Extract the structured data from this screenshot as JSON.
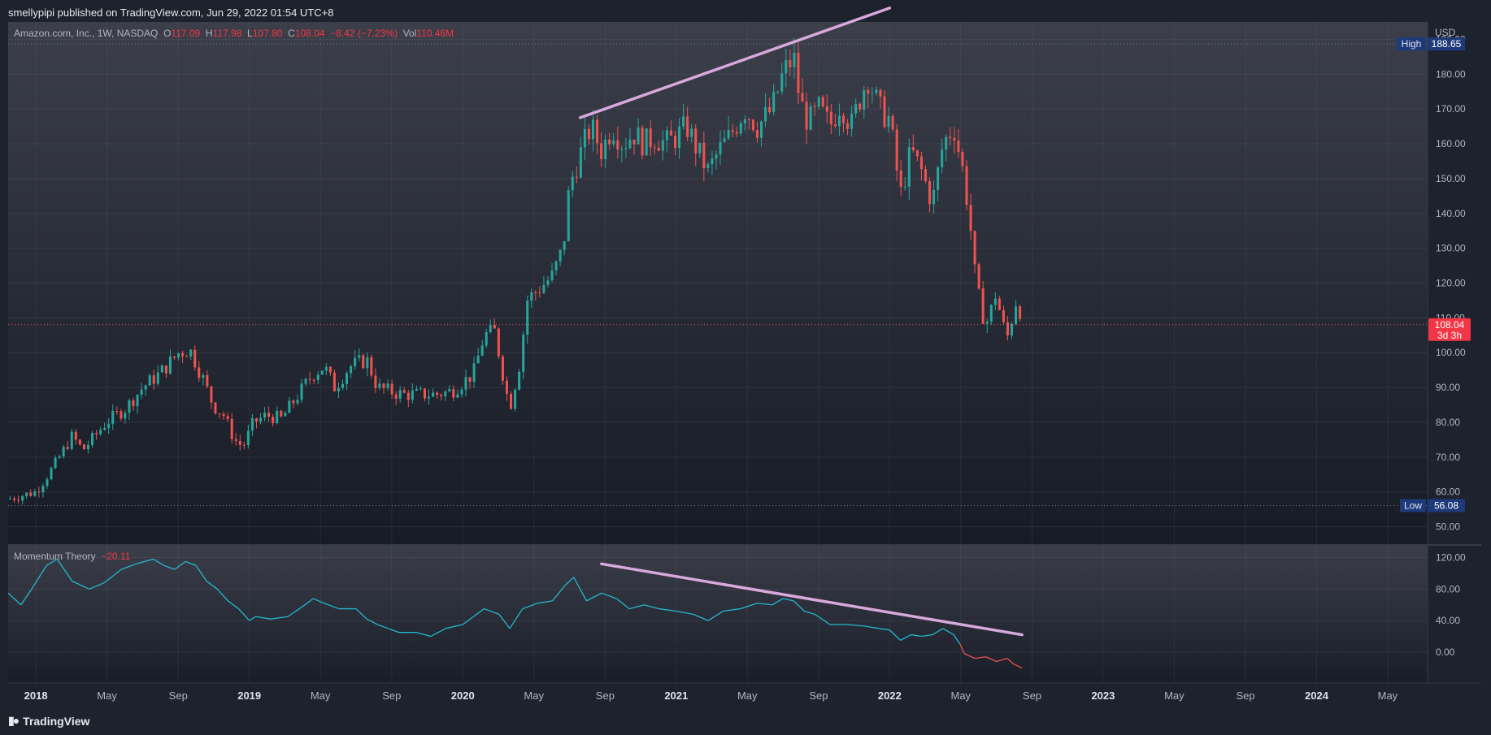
{
  "header": {
    "published": "smellypipi published on TradingView.com, Jun 29, 2022 01:54 UTC+8"
  },
  "legend": {
    "symbol": "Amazon.com, Inc., 1W, NASDAQ",
    "o_label": "O",
    "o_value": "117.09",
    "h_label": "H",
    "h_value": "117.98",
    "l_label": "L",
    "l_value": "107.80",
    "c_label": "C",
    "c_value": "108.04",
    "change": "−8.42 (−7.23%)",
    "vol_label": "Vol",
    "vol_value": "110.46M"
  },
  "currency": "USD",
  "indicator": {
    "name": "Momentum Theory",
    "value": "−20.11"
  },
  "markers": {
    "high_label": "High",
    "high_value": "188.65",
    "low_label": "Low",
    "low_value": "56.08",
    "last_price": "108.04",
    "last_countdown": "3d 3h"
  },
  "footer": {
    "brand": "TradingView"
  },
  "colors": {
    "up": "#26a69a",
    "down": "#ef5350",
    "momentum": "#22b8cf",
    "trendline": "#d8a9dc",
    "marker_bg": "#1e3a7a",
    "last_bg": "#f23645"
  },
  "chart_data": [
    {
      "type": "candlestick",
      "title": "Amazon.com, Inc., 1W, NASDAQ",
      "price_axis": {
        "ticks": [
          "50.00",
          "60.00",
          "70.00",
          "80.00",
          "90.00",
          "100.00",
          "110.00",
          "120.00",
          "130.00",
          "140.00",
          "150.00",
          "160.00",
          "170.00",
          "180.00",
          "190.00"
        ],
        "ylim": [
          45,
          195
        ]
      },
      "time_axis": {
        "ticks": [
          {
            "label": "2018",
            "t": 2018.0,
            "bold": true
          },
          {
            "label": "May",
            "t": 2018.333
          },
          {
            "label": "Sep",
            "t": 2018.667
          },
          {
            "label": "2019",
            "t": 2019.0,
            "bold": true
          },
          {
            "label": "May",
            "t": 2019.333
          },
          {
            "label": "Sep",
            "t": 2019.667
          },
          {
            "label": "2020",
            "t": 2020.0,
            "bold": true
          },
          {
            "label": "May",
            "t": 2020.333
          },
          {
            "label": "Sep",
            "t": 2020.667
          },
          {
            "label": "2021",
            "t": 2021.0,
            "bold": true
          },
          {
            "label": "May",
            "t": 2021.333
          },
          {
            "label": "Sep",
            "t": 2021.667
          },
          {
            "label": "2022",
            "t": 2022.0,
            "bold": true
          },
          {
            "label": "May",
            "t": 2022.333
          },
          {
            "label": "Sep",
            "t": 2022.667
          },
          {
            "label": "2023",
            "t": 2023.0,
            "bold": true
          },
          {
            "label": "May",
            "t": 2023.333
          },
          {
            "label": "Sep",
            "t": 2023.667
          },
          {
            "label": "2024",
            "t": 2024.0,
            "bold": true
          },
          {
            "label": "May",
            "t": 2024.333
          }
        ],
        "xlim": [
          2017.87,
          2024.52
        ]
      },
      "price_path": [
        [
          2017.87,
          58
        ],
        [
          2018.0,
          60
        ],
        [
          2018.08,
          67
        ],
        [
          2018.17,
          76
        ],
        [
          2018.22,
          72
        ],
        [
          2018.33,
          80
        ],
        [
          2018.42,
          84
        ],
        [
          2018.5,
          90
        ],
        [
          2018.58,
          94
        ],
        [
          2018.67,
          100
        ],
        [
          2018.72,
          101
        ],
        [
          2018.78,
          93
        ],
        [
          2018.83,
          85
        ],
        [
          2018.88,
          82
        ],
        [
          2018.93,
          75
        ],
        [
          2018.97,
          73
        ],
        [
          2019.02,
          80
        ],
        [
          2019.08,
          82
        ],
        [
          2019.15,
          81
        ],
        [
          2019.23,
          88
        ],
        [
          2019.3,
          94
        ],
        [
          2019.35,
          96
        ],
        [
          2019.4,
          90
        ],
        [
          2019.47,
          96
        ],
        [
          2019.55,
          98
        ],
        [
          2019.6,
          90
        ],
        [
          2019.65,
          89
        ],
        [
          2019.72,
          88
        ],
        [
          2019.8,
          88
        ],
        [
          2019.88,
          88
        ],
        [
          2019.95,
          89
        ],
        [
          2020.05,
          94
        ],
        [
          2020.1,
          105
        ],
        [
          2020.15,
          106
        ],
        [
          2020.2,
          90
        ],
        [
          2020.22,
          84
        ],
        [
          2020.27,
          98
        ],
        [
          2020.3,
          115
        ],
        [
          2020.35,
          118
        ],
        [
          2020.42,
          122
        ],
        [
          2020.47,
          130
        ],
        [
          2020.5,
          148
        ],
        [
          2020.55,
          157
        ],
        [
          2020.6,
          165
        ],
        [
          2020.65,
          158
        ],
        [
          2020.7,
          165
        ],
        [
          2020.75,
          160
        ],
        [
          2020.8,
          163
        ],
        [
          2020.85,
          160
        ],
        [
          2020.9,
          162
        ],
        [
          2020.95,
          160
        ],
        [
          2021.0,
          162
        ],
        [
          2021.05,
          165
        ],
        [
          2021.1,
          158
        ],
        [
          2021.15,
          152
        ],
        [
          2021.2,
          158
        ],
        [
          2021.25,
          162
        ],
        [
          2021.32,
          170
        ],
        [
          2021.38,
          165
        ],
        [
          2021.45,
          170
        ],
        [
          2021.5,
          180
        ],
        [
          2021.55,
          185
        ],
        [
          2021.58,
          172
        ],
        [
          2021.62,
          166
        ],
        [
          2021.67,
          170
        ],
        [
          2021.72,
          165
        ],
        [
          2021.77,
          172
        ],
        [
          2021.82,
          165
        ],
        [
          2021.87,
          175
        ],
        [
          2021.9,
          179
        ],
        [
          2021.95,
          170
        ],
        [
          2022.0,
          167
        ],
        [
          2022.05,
          145
        ],
        [
          2022.1,
          158
        ],
        [
          2022.15,
          152
        ],
        [
          2022.2,
          143
        ],
        [
          2022.25,
          160
        ],
        [
          2022.3,
          165
        ],
        [
          2022.35,
          150
        ],
        [
          2022.38,
          135
        ],
        [
          2022.4,
          122
        ],
        [
          2022.42,
          115
        ],
        [
          2022.45,
          108
        ],
        [
          2022.48,
          113
        ],
        [
          2022.5,
          118
        ],
        [
          2022.52,
          110
        ],
        [
          2022.55,
          104
        ],
        [
          2022.6,
          117
        ],
        [
          2022.62,
          108.04
        ]
      ]
    },
    {
      "type": "line",
      "title": "Momentum Theory",
      "yaxis_ticks": [
        "0.00",
        "40.00",
        "80.00",
        "120.00"
      ],
      "ylim": [
        -30,
        135
      ],
      "series": [
        {
          "points": [
            [
              2017.87,
              75
            ],
            [
              2017.93,
              60
            ],
            [
              2017.98,
              80
            ],
            [
              2018.05,
              110
            ],
            [
              2018.1,
              118
            ],
            [
              2018.17,
              90
            ],
            [
              2018.25,
              80
            ],
            [
              2018.32,
              88
            ],
            [
              2018.4,
              105
            ],
            [
              2018.47,
              112
            ],
            [
              2018.55,
              118
            ],
            [
              2018.6,
              110
            ],
            [
              2018.65,
              105
            ],
            [
              2018.7,
              115
            ],
            [
              2018.75,
              110
            ],
            [
              2018.8,
              90
            ],
            [
              2018.85,
              80
            ],
            [
              2018.9,
              65
            ],
            [
              2018.95,
              55
            ],
            [
              2019.0,
              40
            ],
            [
              2019.03,
              45
            ],
            [
              2019.1,
              42
            ],
            [
              2019.18,
              45
            ],
            [
              2019.25,
              58
            ],
            [
              2019.3,
              68
            ],
            [
              2019.35,
              62
            ],
            [
              2019.42,
              55
            ],
            [
              2019.5,
              55
            ],
            [
              2019.55,
              42
            ],
            [
              2019.6,
              35
            ],
            [
              2019.65,
              30
            ],
            [
              2019.7,
              25
            ],
            [
              2019.78,
              25
            ],
            [
              2019.85,
              20
            ],
            [
              2019.92,
              30
            ],
            [
              2020.0,
              35
            ],
            [
              2020.05,
              45
            ],
            [
              2020.1,
              55
            ],
            [
              2020.17,
              48
            ],
            [
              2020.22,
              30
            ],
            [
              2020.28,
              55
            ],
            [
              2020.35,
              62
            ],
            [
              2020.42,
              65
            ],
            [
              2020.48,
              85
            ],
            [
              2020.52,
              95
            ],
            [
              2020.58,
              65
            ],
            [
              2020.65,
              75
            ],
            [
              2020.72,
              68
            ],
            [
              2020.78,
              55
            ],
            [
              2020.85,
              60
            ],
            [
              2020.92,
              55
            ],
            [
              2021.0,
              52
            ],
            [
              2021.08,
              48
            ],
            [
              2021.15,
              40
            ],
            [
              2021.22,
              52
            ],
            [
              2021.3,
              55
            ],
            [
              2021.38,
              62
            ],
            [
              2021.45,
              60
            ],
            [
              2021.5,
              68
            ],
            [
              2021.55,
              65
            ],
            [
              2021.6,
              52
            ],
            [
              2021.65,
              48
            ],
            [
              2021.72,
              35
            ],
            [
              2021.8,
              35
            ],
            [
              2021.88,
              33
            ],
            [
              2021.95,
              30
            ],
            [
              2022.0,
              28
            ],
            [
              2022.05,
              15
            ],
            [
              2022.1,
              22
            ],
            [
              2022.15,
              20
            ],
            [
              2022.2,
              22
            ],
            [
              2022.25,
              30
            ],
            [
              2022.3,
              22
            ],
            [
              2022.33,
              10
            ],
            [
              2022.35,
              -2
            ],
            [
              2022.4,
              -8
            ],
            [
              2022.45,
              -6
            ],
            [
              2022.5,
              -12
            ],
            [
              2022.55,
              -8
            ],
            [
              2022.58,
              -15
            ],
            [
              2022.62,
              -20.11
            ]
          ]
        }
      ]
    }
  ],
  "trendlines": [
    {
      "panel": "price",
      "from": [
        2020.55,
        167.5
      ],
      "to": [
        2022.0,
        199
      ]
    },
    {
      "panel": "momentum",
      "from": [
        2020.65,
        112
      ],
      "to": [
        2022.62,
        22
      ]
    }
  ]
}
